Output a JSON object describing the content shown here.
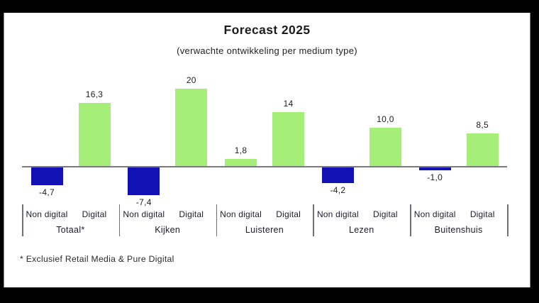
{
  "frame": {
    "background": "#000000",
    "panel_background": "#ffffff"
  },
  "chart_data": {
    "type": "bar",
    "title": "Forecast 2025",
    "subtitle": "(verwachte ontwikkeling per medium type)",
    "categories": [
      "Totaal*",
      "Kijken",
      "Luisteren",
      "Lezen",
      "Buitenshuis"
    ],
    "series": [
      {
        "name": "Non digital",
        "values": [
          -4.7,
          -7.4,
          1.8,
          -4.2,
          -1.0
        ],
        "labels": [
          "-4,7",
          "-7,4",
          "1,8",
          "-4,2",
          "-1,0"
        ]
      },
      {
        "name": "Digital",
        "values": [
          16.3,
          20,
          14,
          10.0,
          8.5
        ],
        "labels": [
          "16,3",
          "20",
          "14",
          "10,0",
          "8,5"
        ]
      }
    ],
    "ylim": [
      -10,
      22
    ],
    "grid": false,
    "legend": "none",
    "value_label_position": "outside-end",
    "colors": {
      "positive_bar": "#a5ee78",
      "negative_bar": "#1212b4",
      "axis_line": "#7a7a7a",
      "separator_line": "#6f6f82",
      "text": "#1c1c1c"
    },
    "footnote": "* Exclusief Retail Media & Pure Digital"
  }
}
